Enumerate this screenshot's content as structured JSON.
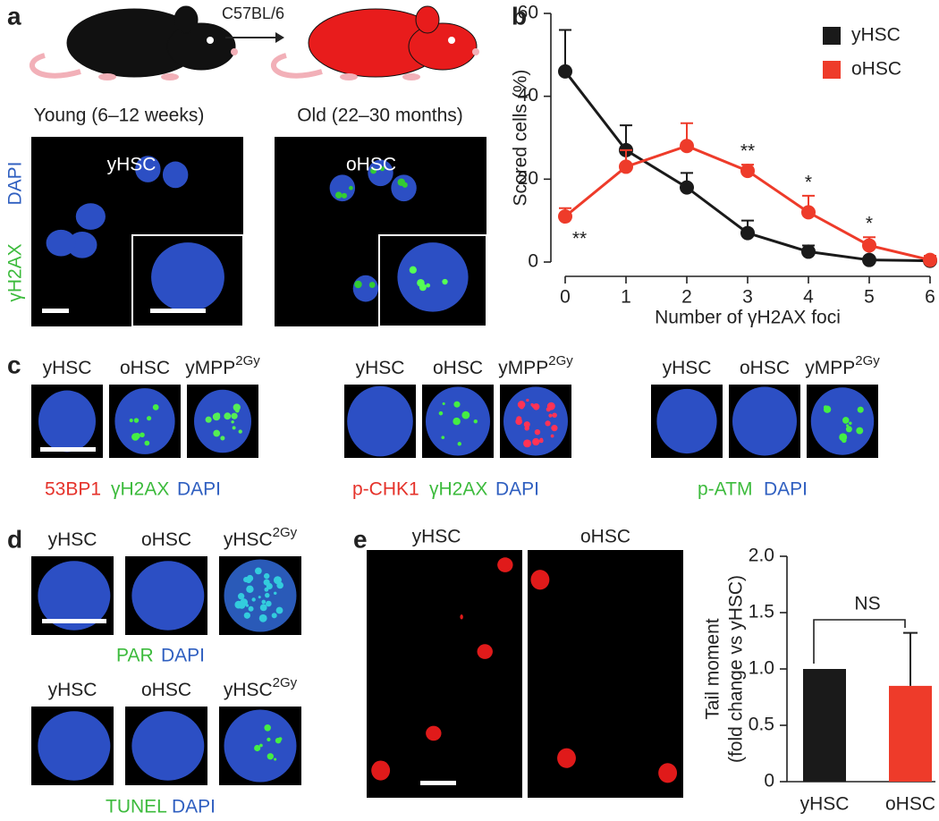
{
  "panel_a": {
    "label": "a",
    "strain": "C57BL/6",
    "young": "Young (6–12 weeks)",
    "old": "Old (22–30 months)",
    "image_labels": [
      "yHSC",
      "oHSC"
    ],
    "channels": [
      "DAPI",
      "γH2AX"
    ]
  },
  "panel_c": {
    "label": "c",
    "groups": [
      {
        "headers": [
          "yHSC",
          "oHSC",
          "yMPP"
        ],
        "sup": "2Gy",
        "stains": [
          "53BP1",
          "γH2AX",
          "DAPI"
        ]
      },
      {
        "headers": [
          "yHSC",
          "oHSC",
          "yMPP"
        ],
        "sup": "2Gy",
        "stains": [
          "p-CHK1",
          "γH2AX",
          "DAPI"
        ]
      },
      {
        "headers": [
          "yHSC",
          "oHSC",
          "yMPP"
        ],
        "sup": "2Gy",
        "stains": [
          "p-ATM",
          "DAPI"
        ]
      }
    ]
  },
  "panel_d": {
    "label": "d",
    "rows": [
      {
        "headers": [
          "yHSC",
          "oHSC",
          "yHSC"
        ],
        "sup": "2Gy",
        "stains": [
          "PAR",
          "DAPI"
        ]
      },
      {
        "headers": [
          "yHSC",
          "oHSC",
          "yHSC"
        ],
        "sup": "2Gy",
        "stains": [
          "TUNEL",
          "DAPI"
        ]
      }
    ]
  },
  "panel_e": {
    "label": "e",
    "image_labels": [
      "yHSC",
      "oHSC"
    ]
  },
  "chart_data": [
    {
      "type": "line",
      "panel_label": "b",
      "xlabel": "Number of γH2AX foci",
      "ylabel": "Scored cells (%)",
      "x": [
        0,
        1,
        2,
        3,
        4,
        5,
        6
      ],
      "xlim": [
        0,
        6
      ],
      "xticks": [
        0,
        1,
        2,
        3,
        4,
        5,
        6
      ],
      "ylim": [
        0,
        60
      ],
      "yticks": [
        0,
        20,
        40,
        60
      ],
      "series": [
        {
          "name": "yHSC",
          "color": "#1a1a1a",
          "values": [
            46,
            27,
            18,
            7,
            2.5,
            0.5,
            0.3
          ],
          "errors": [
            10,
            6,
            3.5,
            3,
            1.5,
            0.5,
            0.5
          ]
        },
        {
          "name": "oHSC",
          "color": "#ee3b2a",
          "values": [
            11,
            23,
            28,
            22,
            12,
            4,
            0.5
          ],
          "errors": [
            2,
            4,
            5.5,
            1.5,
            4,
            2,
            1
          ]
        }
      ],
      "annotations": [
        {
          "x": 0,
          "text": "**"
        },
        {
          "x": 3,
          "text": "**"
        },
        {
          "x": 4,
          "text": "*"
        },
        {
          "x": 5,
          "text": "*"
        }
      ],
      "legend": "upper right"
    },
    {
      "type": "bar",
      "ylabel": [
        "Tail moment",
        "(fold change vs yHSC)"
      ],
      "categories": [
        "yHSC",
        "oHSC"
      ],
      "values": [
        1.0,
        0.85
      ],
      "errors": [
        null,
        0.47
      ],
      "colors": [
        "#1a1a1a",
        "#ee3b2a"
      ],
      "ylim": [
        0,
        2
      ],
      "yticks": [
        0,
        0.5,
        {
          "value": 1,
          "label": "1.0"
        },
        1.5,
        {
          "value": 2,
          "label": "2.0"
        }
      ],
      "annotation": "NS"
    }
  ]
}
